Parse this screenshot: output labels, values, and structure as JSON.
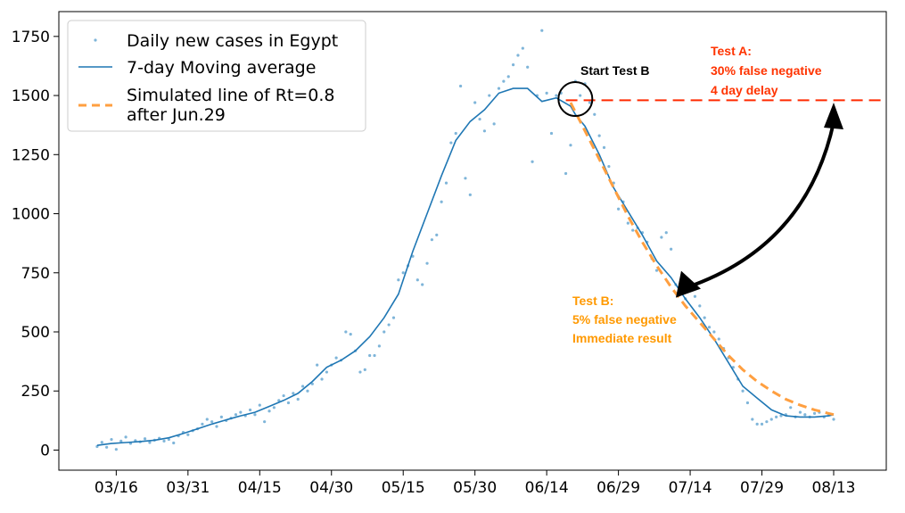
{
  "chart_data": {
    "type": "line",
    "x_tick_labels": [
      "03/16",
      "03/31",
      "04/15",
      "04/30",
      "05/15",
      "05/30",
      "06/14",
      "06/29",
      "07/14",
      "07/29",
      "08/13"
    ],
    "y_ticks": [
      0,
      250,
      500,
      750,
      1000,
      1250,
      1500,
      1750
    ],
    "ylim": [
      -85,
      1855
    ],
    "xlim": [
      -8,
      165
    ],
    "grid": false,
    "legend_position": "top-left",
    "x_start_date": "2020-03-12",
    "series": [
      {
        "name": "Daily new cases in Egypt",
        "kind": "scatter",
        "color": "#7fb5d9",
        "x": [
          0,
          1,
          2,
          3,
          4,
          5,
          6,
          7,
          8,
          9,
          10,
          11,
          12,
          13,
          14,
          15,
          16,
          17,
          18,
          19,
          20,
          21,
          22,
          23,
          24,
          25,
          26,
          27,
          28,
          29,
          30,
          31,
          32,
          33,
          34,
          35,
          36,
          37,
          38,
          39,
          40,
          41,
          42,
          43,
          44,
          45,
          46,
          47,
          48,
          49,
          50,
          51,
          52,
          53,
          54,
          55,
          56,
          57,
          58,
          59,
          60,
          61,
          62,
          63,
          64,
          65,
          66,
          67,
          68,
          69,
          70,
          71,
          72,
          73,
          74,
          75,
          76,
          77,
          78,
          79,
          80,
          81,
          82,
          83,
          84,
          85,
          86,
          87,
          88,
          89,
          90,
          91,
          92,
          93,
          94,
          95,
          96,
          97,
          98,
          99,
          100,
          101,
          102,
          103,
          104,
          105,
          106,
          107,
          108,
          109,
          110,
          111,
          112,
          113,
          114,
          115,
          116,
          117,
          118,
          119,
          120,
          121,
          122,
          123,
          124,
          125,
          126,
          127,
          128,
          129,
          130,
          131,
          132,
          133,
          134,
          135,
          136,
          137,
          138,
          139,
          140,
          141,
          142,
          143,
          144,
          145,
          146,
          147,
          148,
          149,
          150,
          151,
          152,
          153,
          154
        ],
        "values": [
          15,
          33,
          12,
          45,
          3,
          38,
          55,
          28,
          40,
          35,
          48,
          32,
          42,
          50,
          38,
          45,
          30,
          60,
          75,
          65,
          82,
          90,
          110,
          130,
          120,
          100,
          140,
          125,
          135,
          150,
          160,
          145,
          170,
          150,
          190,
          120,
          165,
          180,
          210,
          230,
          200,
          240,
          215,
          270,
          250,
          280,
          360,
          300,
          330,
          360,
          390,
          380,
          500,
          490,
          420,
          330,
          340,
          400,
          400,
          440,
          500,
          530,
          560,
          720,
          750,
          780,
          820,
          720,
          700,
          790,
          890,
          910,
          1050,
          1130,
          1300,
          1340,
          1540,
          1150,
          1080,
          1470,
          1400,
          1350,
          1500,
          1380,
          1530,
          1560,
          1580,
          1630,
          1670,
          1700,
          1620,
          1220,
          1500,
          1775,
          1510,
          1340,
          1500,
          1510,
          1170,
          1290,
          1560,
          1500,
          1550,
          1470,
          1420,
          1330,
          1280,
          1200,
          1130,
          1020,
          1050,
          960,
          930,
          940,
          920,
          880,
          810,
          760,
          900,
          920,
          850,
          700,
          680,
          640,
          690,
          650,
          610,
          560,
          520,
          500,
          470,
          430,
          390,
          350,
          300,
          250,
          200,
          130,
          110,
          110,
          120,
          130,
          140,
          145,
          150,
          180,
          140,
          160,
          150,
          140,
          155,
          160,
          140,
          150,
          130
        ],
        "visible_indices": [
          0,
          1,
          2,
          3,
          4,
          5,
          6,
          7,
          8,
          9,
          10,
          11,
          12,
          13,
          14,
          15,
          16,
          17,
          18,
          19,
          20,
          21,
          22,
          23,
          24,
          25,
          26,
          27,
          28,
          29,
          30,
          31,
          32,
          33,
          34,
          35,
          36,
          37,
          38,
          39,
          40,
          41,
          42,
          43,
          44,
          45,
          46,
          47,
          48,
          49,
          50,
          51,
          52,
          53,
          54,
          55,
          56,
          57,
          58,
          59,
          60,
          61,
          62,
          63,
          64,
          65,
          66,
          67,
          68,
          69,
          70,
          71,
          72,
          73,
          74,
          75,
          76,
          77,
          78,
          79,
          80,
          81,
          82,
          83,
          84,
          85,
          86,
          87,
          88,
          89,
          90,
          91,
          92,
          93,
          94,
          95,
          96,
          97,
          98,
          99,
          100,
          101,
          102,
          103,
          104,
          105,
          106,
          107,
          108,
          109,
          110,
          111,
          112,
          113,
          114,
          115,
          116,
          117,
          118,
          119,
          120,
          121,
          122,
          123,
          124,
          125,
          126,
          127,
          128,
          129,
          130,
          131,
          132,
          133,
          134,
          135,
          136,
          137,
          138,
          139,
          140,
          141,
          142,
          143,
          144,
          145,
          146,
          147,
          148,
          149,
          150,
          151,
          152,
          153,
          154
        ]
      },
      {
        "name": "7-day Moving average",
        "kind": "line",
        "color": "#1f77b4",
        "x": [
          0,
          3,
          6,
          9,
          12,
          15,
          18,
          21,
          24,
          27,
          30,
          33,
          36,
          39,
          42,
          45,
          48,
          51,
          54,
          57,
          60,
          63,
          66,
          69,
          72,
          75,
          78,
          81,
          84,
          87,
          90,
          93,
          96,
          99,
          100,
          102,
          105,
          108,
          111,
          114,
          117,
          120,
          123,
          126,
          129,
          132,
          135,
          138,
          141,
          144,
          147,
          150,
          153,
          154
        ],
        "values": [
          20,
          28,
          32,
          36,
          42,
          52,
          70,
          90,
          110,
          128,
          145,
          160,
          185,
          210,
          240,
          290,
          350,
          380,
          420,
          480,
          560,
          660,
          840,
          1000,
          1160,
          1310,
          1390,
          1440,
          1510,
          1530,
          1530,
          1475,
          1490,
          1455,
          1420,
          1370,
          1250,
          1110,
          1010,
          910,
          800,
          730,
          640,
          560,
          470,
          370,
          270,
          220,
          170,
          145,
          140,
          140,
          145,
          150
        ]
      },
      {
        "name": "Simulated line of Rt=0.8\nafter Jun.29",
        "kind": "line",
        "style": "dashed",
        "color": "#ff9f40",
        "x": [
          99,
          102,
          105,
          108,
          111,
          114,
          117,
          120,
          123,
          126,
          129,
          132,
          135,
          138,
          141,
          144,
          147,
          150,
          153,
          154
        ],
        "values": [
          1470,
          1350,
          1230,
          1110,
          990,
          880,
          780,
          690,
          610,
          540,
          470,
          400,
          340,
          290,
          250,
          215,
          190,
          170,
          155,
          150
        ]
      }
    ],
    "overlays": {
      "test_a_line": {
        "x": [
          98,
          164
        ],
        "y": 1480,
        "color": "#ff2a00"
      },
      "circle_center": {
        "x": 100,
        "y": 1485
      },
      "arrow": {
        "from": [
          121,
          645
        ],
        "to": [
          154,
          1470
        ],
        "color": "#000000"
      }
    },
    "annotations": {
      "start_test_b": "Start Test B",
      "test_a_title": "Test A:",
      "test_a_line1": "30% false negative",
      "test_a_line2": "4 day delay",
      "test_b_title": "Test B:",
      "test_b_line1": "5% false negative",
      "test_b_line2": "Immediate result"
    },
    "colors": {
      "test_a": "#ff3300",
      "test_b": "#ff9900",
      "start": "#000000"
    }
  }
}
